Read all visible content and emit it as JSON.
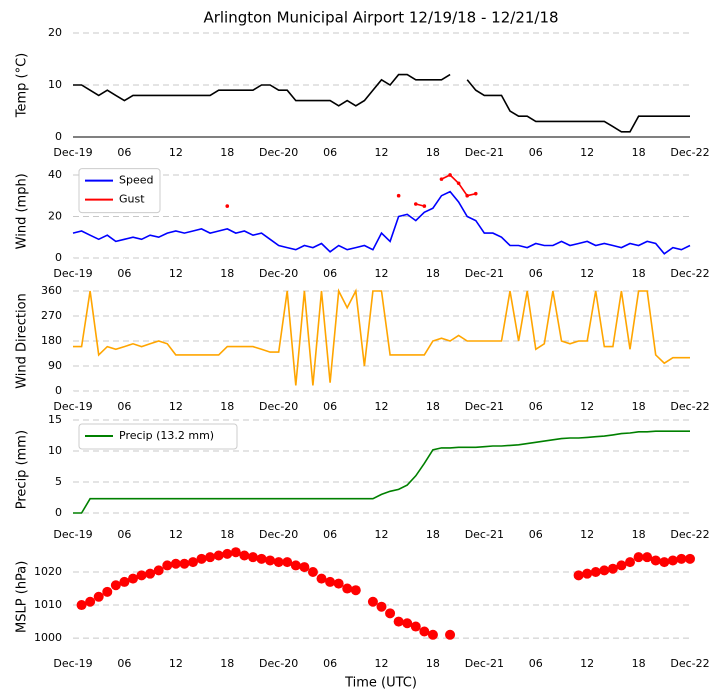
{
  "chart_data": [
    {
      "type": "line",
      "title": "Arlington Municipal Airport 12/19/18 - 12/21/18",
      "ylabel": "Temp (°C)",
      "color": "#000000",
      "grid": true,
      "xlim": [
        0,
        72
      ],
      "ylim": [
        0,
        20
      ],
      "yticks": [
        0,
        10,
        20
      ],
      "xticks": [
        {
          "value": 0,
          "label": "Dec-19"
        },
        {
          "value": 6,
          "label": "06"
        },
        {
          "value": 12,
          "label": "12"
        },
        {
          "value": 18,
          "label": "18"
        },
        {
          "value": 24,
          "label": "Dec-20"
        },
        {
          "value": 30,
          "label": "06"
        },
        {
          "value": 36,
          "label": "12"
        },
        {
          "value": 42,
          "label": "18"
        },
        {
          "value": 48,
          "label": "Dec-21"
        },
        {
          "value": 54,
          "label": "06"
        },
        {
          "value": 60,
          "label": "12"
        },
        {
          "value": 66,
          "label": "18"
        },
        {
          "value": 72,
          "label": "Dec-22"
        }
      ],
      "x": [
        0,
        1,
        2,
        3,
        4,
        5,
        6,
        7,
        8,
        9,
        10,
        11,
        12,
        13,
        14,
        15,
        16,
        17,
        18,
        19,
        20,
        21,
        22,
        23,
        24,
        25,
        26,
        27,
        28,
        29,
        30,
        31,
        32,
        33,
        34,
        35,
        36,
        37,
        38,
        39,
        40,
        41,
        42,
        43,
        44,
        45,
        46,
        47,
        48,
        49,
        50,
        51,
        52,
        53,
        54,
        55,
        56,
        57,
        58,
        59,
        60,
        61,
        62,
        63,
        64,
        65,
        66,
        67,
        68,
        69,
        70,
        71,
        72
      ],
      "values": [
        10,
        10,
        9,
        8,
        9,
        8,
        7,
        8,
        8,
        8,
        8,
        8,
        8,
        8,
        8,
        8,
        8,
        9,
        9,
        9,
        9,
        9,
        10,
        10,
        9,
        9,
        7,
        7,
        7,
        7,
        7,
        6,
        7,
        6,
        7,
        9,
        11,
        10,
        12,
        12,
        11,
        11,
        11,
        11,
        12,
        null,
        11,
        9,
        8,
        8,
        8,
        5,
        4,
        4,
        3,
        3,
        3,
        3,
        3,
        3,
        3,
        3,
        3,
        2,
        1,
        1,
        4,
        4,
        4,
        4,
        4,
        4,
        4
      ]
    },
    {
      "type": "line",
      "ylabel": "Wind (mph)",
      "grid": true,
      "legend": "upper left",
      "xlim": [
        0,
        72
      ],
      "ylim": [
        0,
        45
      ],
      "yticks": [
        0,
        20,
        40
      ],
      "xticks": [
        {
          "value": 0,
          "label": "Dec-19"
        },
        {
          "value": 6,
          "label": "06"
        },
        {
          "value": 12,
          "label": "12"
        },
        {
          "value": 18,
          "label": "18"
        },
        {
          "value": 24,
          "label": "Dec-20"
        },
        {
          "value": 30,
          "label": "06"
        },
        {
          "value": 36,
          "label": "12"
        },
        {
          "value": 42,
          "label": "18"
        },
        {
          "value": 48,
          "label": "Dec-21"
        },
        {
          "value": 54,
          "label": "06"
        },
        {
          "value": 60,
          "label": "12"
        },
        {
          "value": 66,
          "label": "18"
        },
        {
          "value": 72,
          "label": "Dec-22"
        }
      ],
      "x": [
        0,
        1,
        2,
        3,
        4,
        5,
        6,
        7,
        8,
        9,
        10,
        11,
        12,
        13,
        14,
        15,
        16,
        17,
        18,
        19,
        20,
        21,
        22,
        23,
        24,
        25,
        26,
        27,
        28,
        29,
        30,
        31,
        32,
        33,
        34,
        35,
        36,
        37,
        38,
        39,
        40,
        41,
        42,
        43,
        44,
        45,
        46,
        47,
        48,
        49,
        50,
        51,
        52,
        53,
        54,
        55,
        56,
        57,
        58,
        59,
        60,
        61,
        62,
        63,
        64,
        65,
        66,
        67,
        68,
        69,
        70,
        71,
        72
      ],
      "series": [
        {
          "name": "Speed",
          "color": "#0000ff",
          "values": [
            12,
            13,
            11,
            9,
            11,
            8,
            9,
            10,
            9,
            11,
            10,
            12,
            13,
            12,
            13,
            14,
            12,
            13,
            14,
            12,
            13,
            11,
            12,
            9,
            6,
            5,
            4,
            6,
            5,
            7,
            3,
            6,
            4,
            5,
            6,
            4,
            12,
            8,
            20,
            21,
            18,
            22,
            24,
            30,
            32,
            27,
            20,
            18,
            12,
            12,
            10,
            6,
            6,
            5,
            7,
            6,
            6,
            8,
            6,
            7,
            8,
            6,
            7,
            6,
            5,
            7,
            6,
            8,
            7,
            2,
            5,
            4,
            6
          ]
        },
        {
          "name": "Gust",
          "color": "#ff0000",
          "marker": true,
          "values": [
            null,
            null,
            null,
            null,
            null,
            null,
            null,
            null,
            null,
            null,
            null,
            null,
            null,
            null,
            null,
            null,
            null,
            null,
            25,
            null,
            null,
            null,
            null,
            null,
            null,
            null,
            null,
            null,
            null,
            null,
            null,
            null,
            null,
            null,
            null,
            null,
            null,
            null,
            30,
            null,
            26,
            25,
            null,
            38,
            40,
            36,
            30,
            31,
            null,
            null,
            null,
            null,
            null,
            null,
            null,
            null,
            null,
            null,
            null,
            null,
            null,
            null,
            null,
            null,
            null,
            null,
            null,
            null,
            null,
            null,
            null,
            null,
            null
          ]
        }
      ]
    },
    {
      "type": "line",
      "ylabel": "Wind Direction",
      "color": "#ffa500",
      "grid": true,
      "xlim": [
        0,
        72
      ],
      "ylim": [
        0,
        360
      ],
      "yticks": [
        0,
        90,
        180,
        270,
        360
      ],
      "xticks": [
        {
          "value": 0,
          "label": "Dec-19"
        },
        {
          "value": 6,
          "label": "06"
        },
        {
          "value": 12,
          "label": "12"
        },
        {
          "value": 18,
          "label": "18"
        },
        {
          "value": 24,
          "label": "Dec-20"
        },
        {
          "value": 30,
          "label": "06"
        },
        {
          "value": 36,
          "label": "12"
        },
        {
          "value": 42,
          "label": "18"
        },
        {
          "value": 48,
          "label": "Dec-21"
        },
        {
          "value": 54,
          "label": "06"
        },
        {
          "value": 60,
          "label": "12"
        },
        {
          "value": 66,
          "label": "18"
        },
        {
          "value": 72,
          "label": "Dec-22"
        }
      ],
      "x": [
        0,
        1,
        2,
        3,
        4,
        5,
        6,
        7,
        8,
        9,
        10,
        11,
        12,
        13,
        14,
        15,
        16,
        17,
        18,
        19,
        20,
        21,
        22,
        23,
        24,
        25,
        26,
        27,
        28,
        29,
        30,
        31,
        32,
        33,
        34,
        35,
        36,
        37,
        38,
        39,
        40,
        41,
        42,
        43,
        44,
        45,
        46,
        47,
        48,
        49,
        50,
        51,
        52,
        53,
        54,
        55,
        56,
        57,
        58,
        59,
        60,
        61,
        62,
        63,
        64,
        65,
        66,
        67,
        68,
        69,
        70,
        71,
        72
      ],
      "values": [
        160,
        160,
        360,
        130,
        160,
        150,
        160,
        170,
        160,
        170,
        180,
        170,
        130,
        130,
        130,
        130,
        130,
        130,
        160,
        160,
        160,
        160,
        150,
        140,
        140,
        360,
        20,
        360,
        20,
        360,
        30,
        360,
        300,
        360,
        90,
        360,
        360,
        130,
        130,
        130,
        130,
        130,
        180,
        190,
        180,
        200,
        180,
        180,
        180,
        180,
        180,
        360,
        180,
        360,
        150,
        170,
        360,
        180,
        170,
        180,
        180,
        360,
        160,
        160,
        360,
        150,
        360,
        360,
        130,
        100,
        120,
        120,
        120
      ]
    },
    {
      "type": "line",
      "ylabel": "Precip (mm)",
      "grid": true,
      "legend": "upper left",
      "xlim": [
        0,
        72
      ],
      "ylim": [
        -1,
        15
      ],
      "yticks": [
        0,
        5,
        10,
        15
      ],
      "xticks": [
        {
          "value": 0,
          "label": "Dec-19"
        },
        {
          "value": 6,
          "label": "06"
        },
        {
          "value": 12,
          "label": "12"
        },
        {
          "value": 18,
          "label": "18"
        },
        {
          "value": 24,
          "label": "Dec-20"
        },
        {
          "value": 30,
          "label": "06"
        },
        {
          "value": 36,
          "label": "12"
        },
        {
          "value": 42,
          "label": "18"
        },
        {
          "value": 48,
          "label": "Dec-21"
        },
        {
          "value": 54,
          "label": "06"
        },
        {
          "value": 60,
          "label": "12"
        },
        {
          "value": 66,
          "label": "18"
        },
        {
          "value": 72,
          "label": "Dec-22"
        }
      ],
      "x": [
        0,
        1,
        2,
        3,
        4,
        5,
        6,
        7,
        8,
        9,
        10,
        11,
        12,
        13,
        14,
        15,
        16,
        17,
        18,
        19,
        20,
        21,
        22,
        23,
        24,
        25,
        26,
        27,
        28,
        29,
        30,
        31,
        32,
        33,
        34,
        35,
        36,
        37,
        38,
        39,
        40,
        41,
        42,
        43,
        44,
        45,
        46,
        47,
        48,
        49,
        50,
        51,
        52,
        53,
        54,
        55,
        56,
        57,
        58,
        59,
        60,
        61,
        62,
        63,
        64,
        65,
        66,
        67,
        68,
        69,
        70,
        71,
        72
      ],
      "series": [
        {
          "name": "Precip (13.2 mm)",
          "color": "#008000",
          "values": [
            0,
            0,
            2.3,
            2.3,
            2.3,
            2.3,
            2.3,
            2.3,
            2.3,
            2.3,
            2.3,
            2.3,
            2.3,
            2.3,
            2.3,
            2.3,
            2.3,
            2.3,
            2.3,
            2.3,
            2.3,
            2.3,
            2.3,
            2.3,
            2.3,
            2.3,
            2.3,
            2.3,
            2.3,
            2.3,
            2.3,
            2.3,
            2.3,
            2.3,
            2.3,
            2.3,
            3,
            3.5,
            3.8,
            4.5,
            6,
            8,
            10.2,
            10.5,
            10.5,
            10.6,
            10.6,
            10.6,
            10.7,
            10.8,
            10.8,
            10.9,
            11,
            11.2,
            11.4,
            11.6,
            11.8,
            12,
            12.1,
            12.1,
            12.2,
            12.3,
            12.4,
            12.6,
            12.8,
            12.9,
            13.1,
            13.1,
            13.2,
            13.2,
            13.2,
            13.2,
            13.2
          ]
        }
      ]
    },
    {
      "type": "scatter",
      "ylabel": "MSLP (hPa)",
      "xlabel": "Time (UTC)",
      "color": "#ff0000",
      "grid": true,
      "xlim": [
        0,
        72
      ],
      "ylim": [
        997,
        1028
      ],
      "yticks": [
        1000,
        1010,
        1020
      ],
      "xticks": [
        {
          "value": 0,
          "label": "Dec-19"
        },
        {
          "value": 6,
          "label": "06"
        },
        {
          "value": 12,
          "label": "12"
        },
        {
          "value": 18,
          "label": "18"
        },
        {
          "value": 24,
          "label": "Dec-20"
        },
        {
          "value": 30,
          "label": "06"
        },
        {
          "value": 36,
          "label": "12"
        },
        {
          "value": 42,
          "label": "18"
        },
        {
          "value": 48,
          "label": "Dec-21"
        },
        {
          "value": 54,
          "label": "06"
        },
        {
          "value": 60,
          "label": "12"
        },
        {
          "value": 66,
          "label": "18"
        },
        {
          "value": 72,
          "label": "Dec-22"
        }
      ],
      "x": [
        1,
        2,
        3,
        4,
        5,
        6,
        7,
        8,
        9,
        10,
        11,
        12,
        13,
        14,
        15,
        16,
        17,
        18,
        19,
        20,
        21,
        22,
        23,
        24,
        25,
        26,
        27,
        28,
        29,
        30,
        31,
        32,
        33,
        35,
        36,
        37,
        38,
        39,
        40,
        41,
        42,
        44,
        59,
        60,
        61,
        62,
        63,
        64,
        65,
        66,
        67,
        68,
        69,
        70,
        71,
        72
      ],
      "values": [
        1010,
        1011,
        1012.5,
        1014,
        1016,
        1017,
        1018,
        1019,
        1019.5,
        1020.5,
        1022,
        1022.5,
        1022.5,
        1023,
        1024,
        1024.5,
        1025,
        1025.5,
        1026,
        1025,
        1024.5,
        1024,
        1023.5,
        1023,
        1023,
        1022,
        1021.5,
        1020,
        1018,
        1017,
        1016.5,
        1015,
        1014.5,
        1011,
        1009.5,
        1007.5,
        1005,
        1004.5,
        1003.5,
        1002,
        1001,
        1001,
        1019,
        1019.5,
        1020,
        1020.5,
        1021,
        1022,
        1023,
        1024.5,
        1024.5,
        1023.5,
        1023,
        1023.5,
        1024,
        1024
      ]
    }
  ]
}
